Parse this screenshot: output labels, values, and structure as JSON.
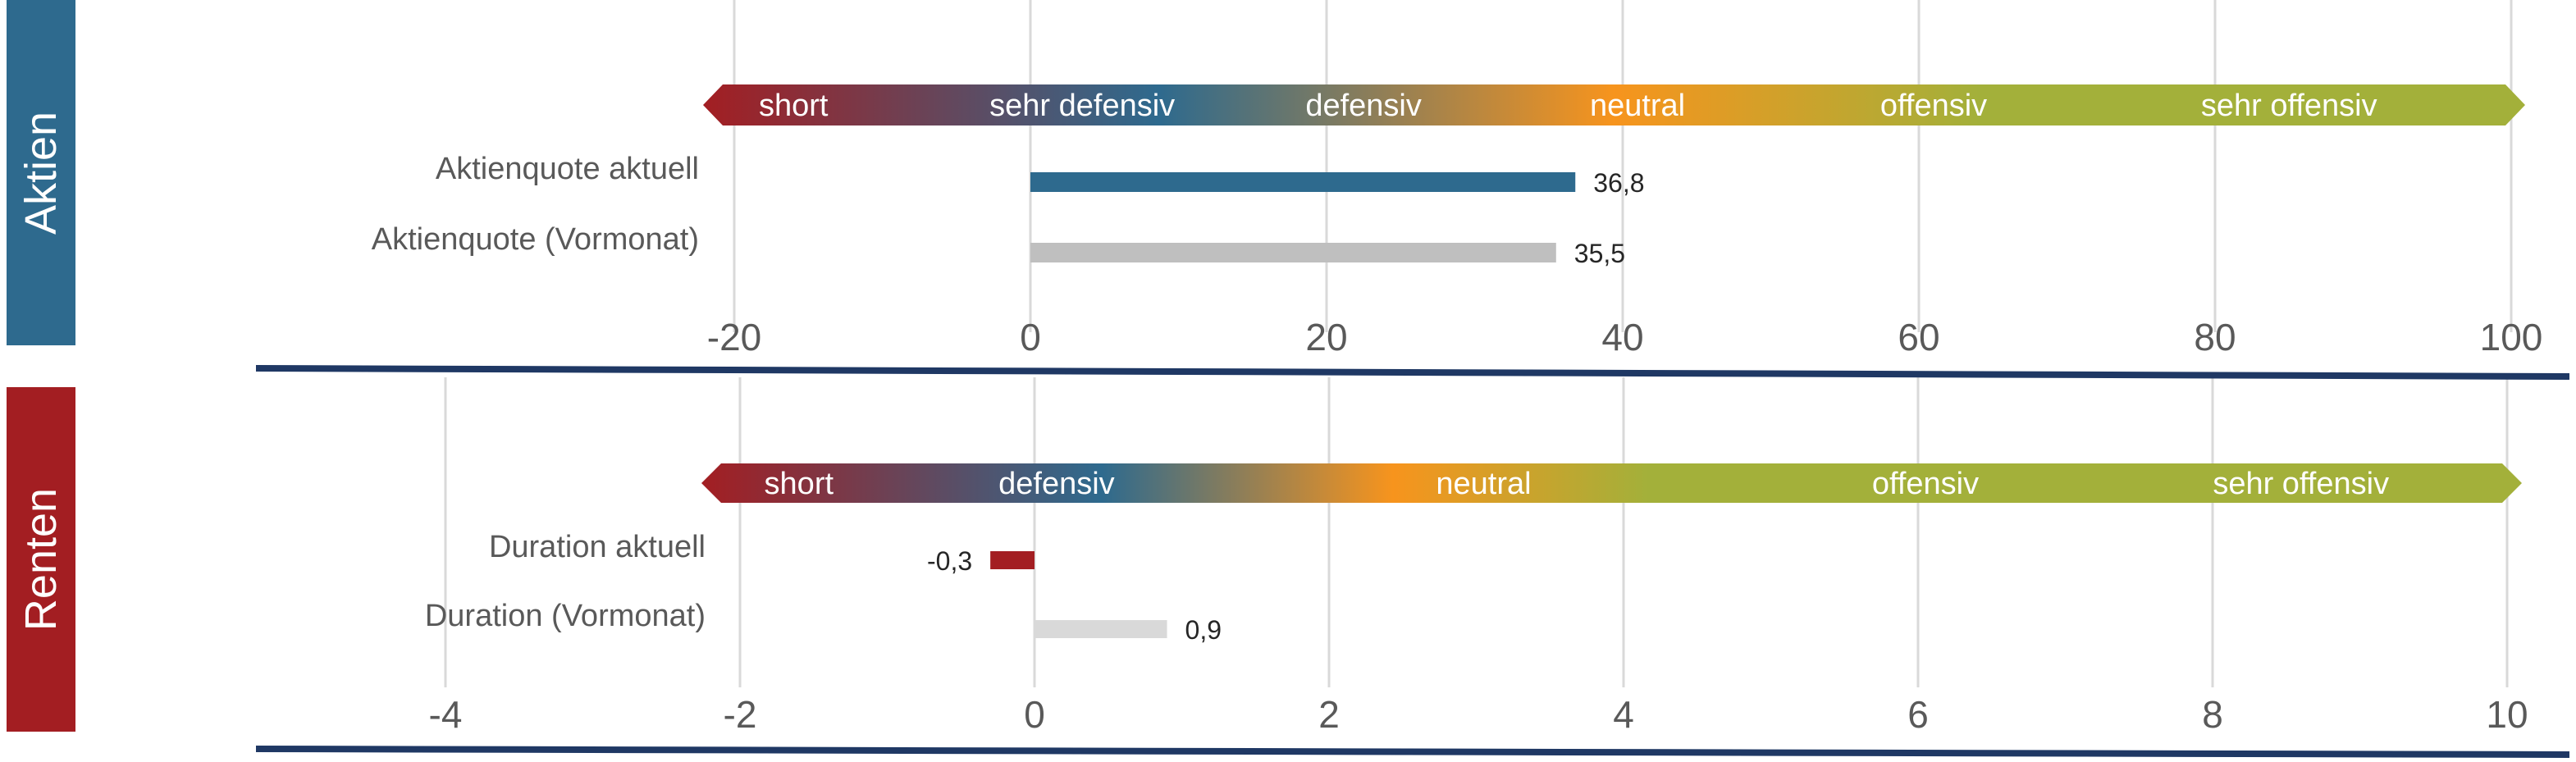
{
  "panels": [
    {
      "name": "Aktien",
      "color": "#2e6a8e"
    },
    {
      "name": "Renten",
      "color": "#a31e22"
    }
  ],
  "chart_data": [
    {
      "type": "bar",
      "orientation": "horizontal",
      "panel": "Aktien",
      "categories": [
        "Aktienquote aktuell",
        "Aktienquote (Vormonat)"
      ],
      "values": [
        36.8,
        35.5
      ],
      "value_labels": [
        "36,8",
        "35,5"
      ],
      "bar_colors": [
        "#2e6a8e",
        "#bfbfbf"
      ],
      "xlim": [
        -20,
        100
      ],
      "xticks": [
        -20,
        0,
        20,
        40,
        60,
        80,
        100
      ],
      "grid": true,
      "scale_band": {
        "labels": [
          "short",
          "sehr defensiv",
          "defensiv",
          "neutral",
          "offensiv",
          "sehr offensiv"
        ],
        "label_positions": [
          -16,
          3.5,
          22.5,
          41,
          61,
          85
        ],
        "colors": [
          "#a31e22",
          "#2e6a8e",
          "#f7941d",
          "#a3b03a"
        ]
      }
    },
    {
      "type": "bar",
      "orientation": "horizontal",
      "panel": "Renten",
      "categories": [
        "Duration aktuell",
        "Duration (Vormonat)"
      ],
      "values": [
        -0.3,
        0.9
      ],
      "value_labels": [
        "-0,3",
        "0,9"
      ],
      "bar_colors": [
        "#a31e22",
        "#d9d9d9"
      ],
      "xlim": [
        -4,
        10
      ],
      "xticks": [
        -4,
        -2,
        0,
        2,
        4,
        6,
        8,
        10
      ],
      "grid": true,
      "scale_band": {
        "labels": [
          "short",
          "defensiv",
          "neutral",
          "offensiv",
          "sehr offensiv"
        ],
        "label_positions": [
          -1.6,
          0.15,
          3.05,
          6.05,
          8.6
        ],
        "colors": [
          "#a31e22",
          "#2e6a8e",
          "#f7941d",
          "#a3b03a"
        ]
      }
    }
  ]
}
